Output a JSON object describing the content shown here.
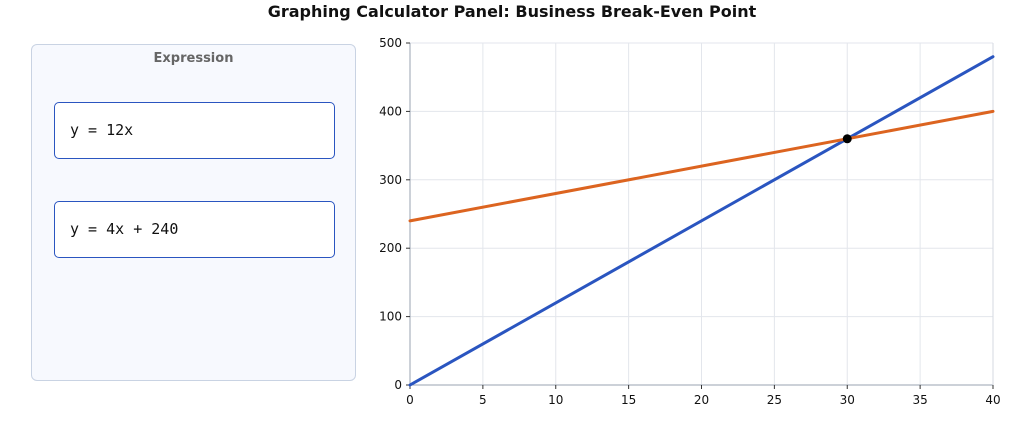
{
  "title": "Graphing Calculator Panel: Business Break-Even Point",
  "expression_panel": {
    "header": "Expression",
    "expressions": [
      "y = 12x",
      "y = 4x + 240"
    ]
  },
  "chart_data": {
    "type": "line",
    "title": "",
    "xlabel": "",
    "ylabel": "",
    "xlim": [
      0,
      40
    ],
    "ylim": [
      0,
      500
    ],
    "xticks": [
      0,
      5,
      10,
      15,
      20,
      25,
      30,
      35,
      40
    ],
    "yticks": [
      0,
      100,
      200,
      300,
      400,
      500
    ],
    "grid": true,
    "series": [
      {
        "x": [
          0,
          40
        ],
        "y": [
          0,
          480
        ],
        "color": "#2a55c0"
      },
      {
        "x": [
          0,
          40
        ],
        "y": [
          240,
          400
        ],
        "color": "#dc6420"
      }
    ],
    "points": [
      {
        "x": 30,
        "y": 360,
        "color": "#000000"
      }
    ]
  }
}
